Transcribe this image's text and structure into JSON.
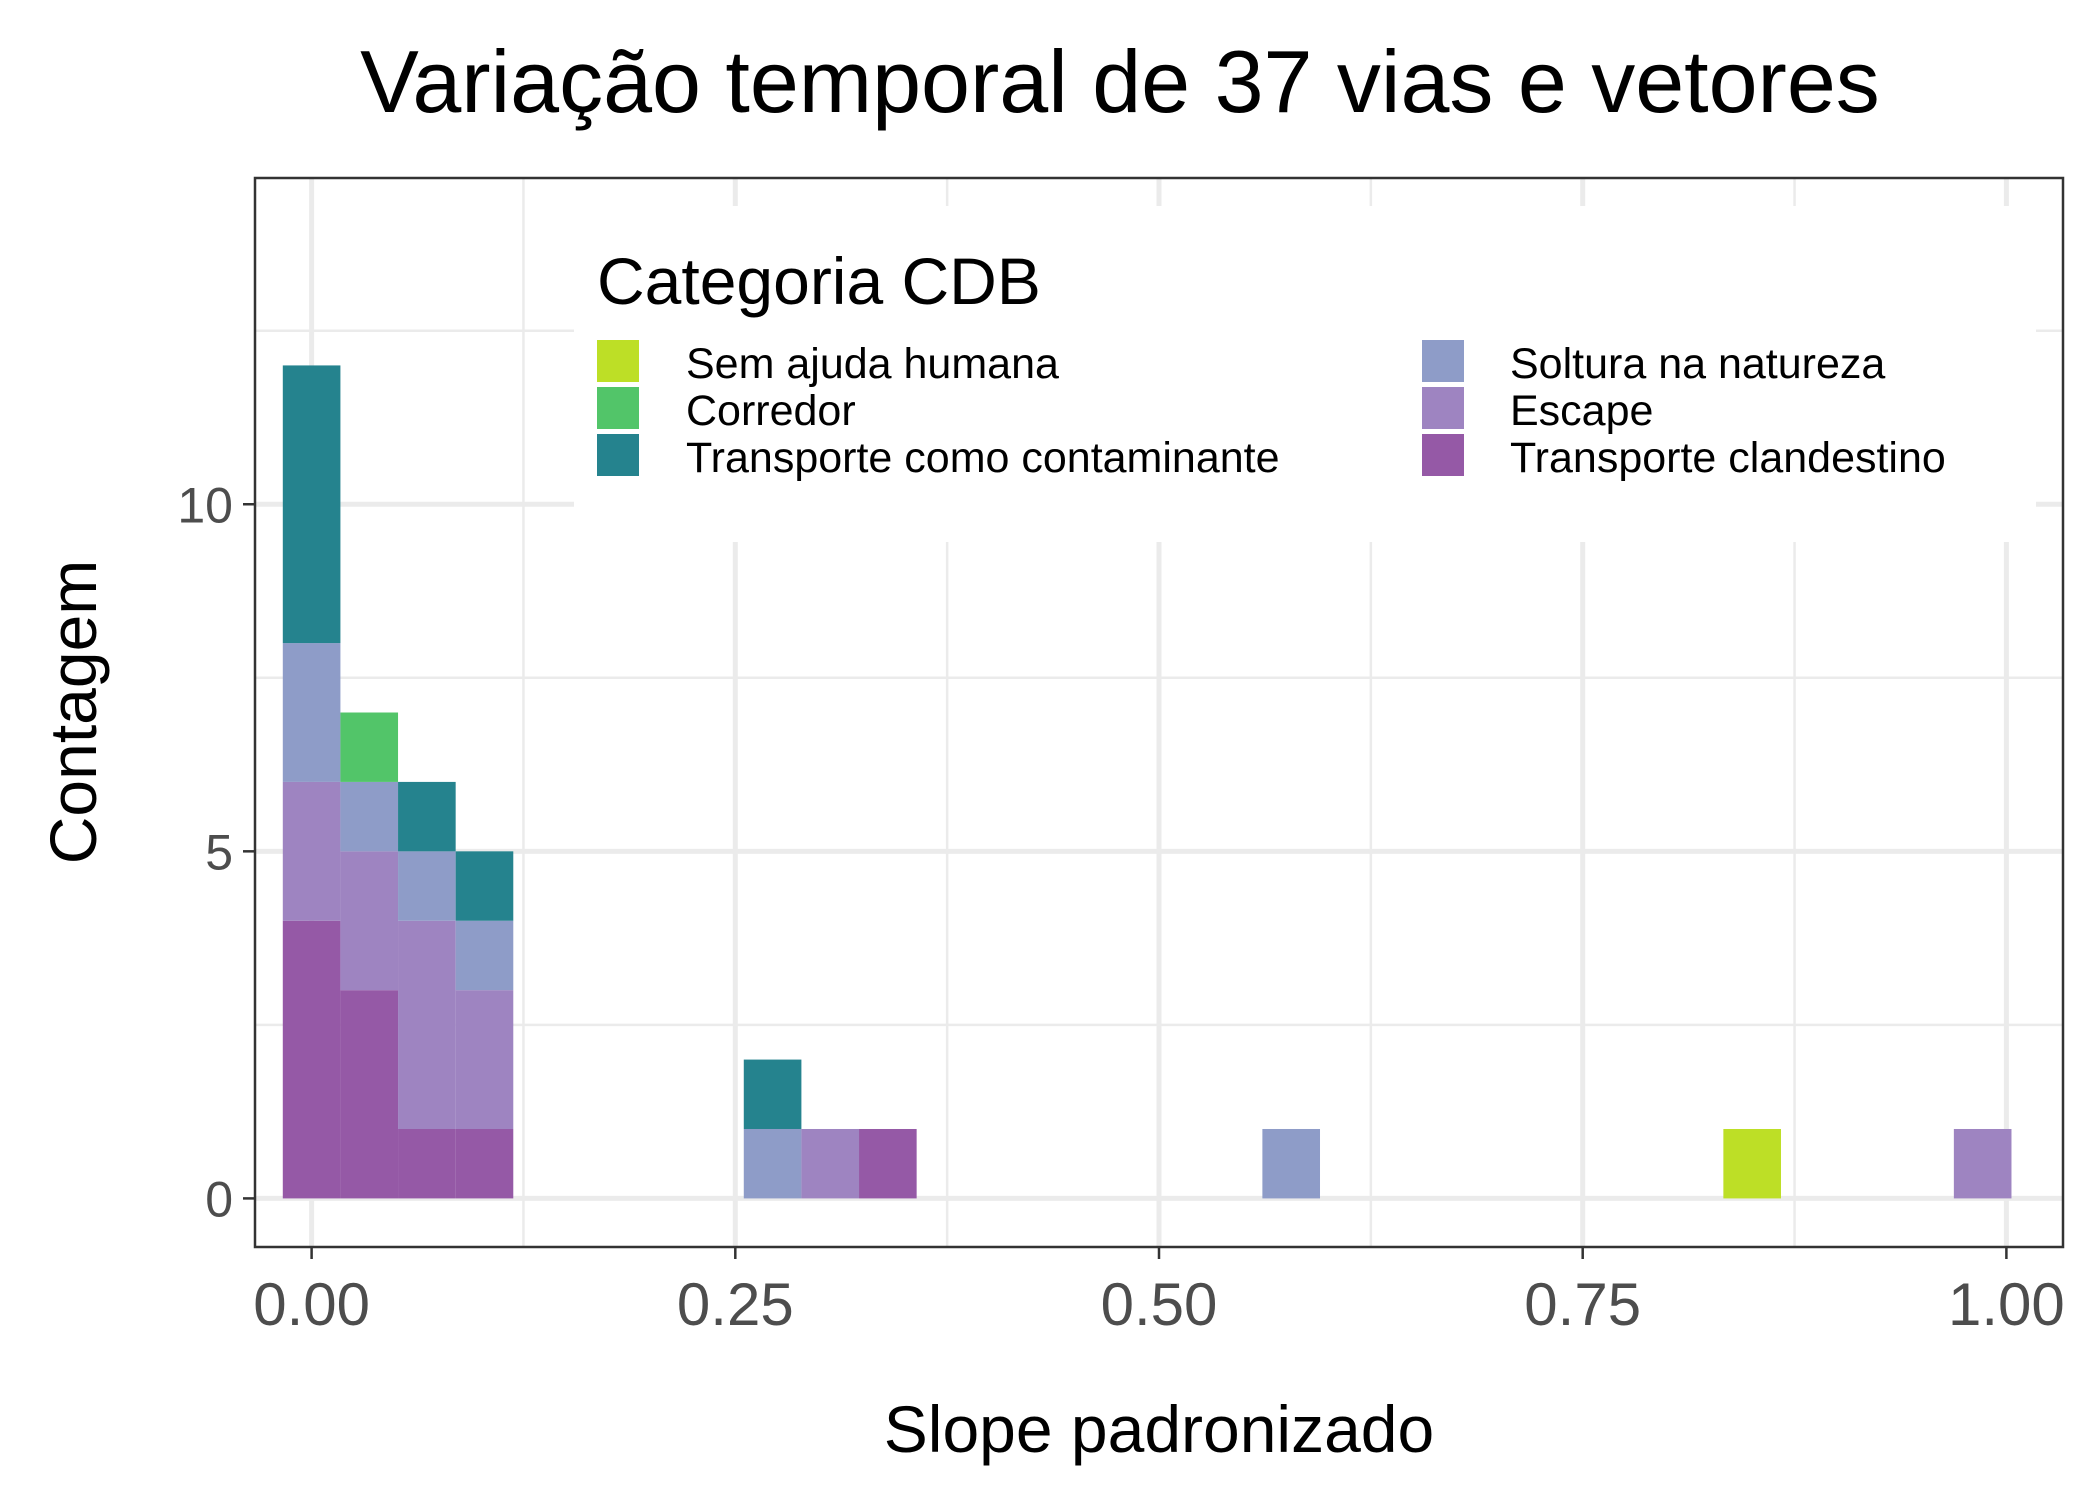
{
  "chart_data": {
    "type": "bar",
    "title": "Variação temporal de 37 vias e vetores",
    "xlabel": "Slope padronizado",
    "ylabel": "Contagem",
    "xlim": [
      -0.0334,
      1.0334
    ],
    "ylim": [
      -0.7,
      14.7
    ],
    "x_ticks": [
      0.0,
      0.25,
      0.5,
      0.75,
      1.0
    ],
    "x_tick_labels": [
      "0.00",
      "0.25",
      "0.50",
      "0.75",
      "1.00"
    ],
    "y_ticks": [
      0,
      5,
      10
    ],
    "y_tick_labels": [
      "0",
      "5",
      "10"
    ],
    "grid": true,
    "bin_width": 0.034,
    "stacking_order_bottom_to_top": [
      "Transporte clandestino",
      "Escape",
      "Soltura na natureza",
      "Corredor",
      "Transporte como contaminante",
      "Sem ajuda humana"
    ],
    "legend": {
      "title": "Categoria CDB",
      "placement": "top-right (inside plot)",
      "entries": [
        "Sem ajuda humana",
        "Corredor",
        "Transporte como contaminante",
        "Soltura na natureza",
        "Escape",
        "Transporte clandestino"
      ]
    },
    "bins": [
      0.0,
      0.034,
      0.068,
      0.102,
      0.272,
      0.306,
      0.34,
      0.578,
      0.85,
      0.986
    ],
    "series": [
      {
        "name": "Sem ajuda humana",
        "color": "#bddf26",
        "values": [
          0,
          0,
          0,
          0,
          0,
          0,
          0,
          0,
          1,
          0
        ]
      },
      {
        "name": "Corredor",
        "color": "#52c569",
        "values": [
          0,
          1,
          0,
          0,
          0,
          0,
          0,
          0,
          0,
          0
        ]
      },
      {
        "name": "Transporte como contaminante",
        "color": "#25838e",
        "values": [
          4,
          0,
          1,
          1,
          1,
          0,
          0,
          0,
          0,
          0
        ]
      },
      {
        "name": "Soltura na natureza",
        "color": "#8e9cc8",
        "values": [
          2,
          1,
          1,
          1,
          1,
          0,
          0,
          1,
          0,
          0
        ]
      },
      {
        "name": "Escape",
        "color": "#9e84c1",
        "values": [
          2,
          2,
          3,
          2,
          0,
          1,
          0,
          0,
          0,
          1
        ]
      },
      {
        "name": "Transporte clandestino",
        "color": "#9559a6",
        "values": [
          4,
          3,
          1,
          1,
          0,
          0,
          1,
          0,
          0,
          0
        ]
      }
    ]
  }
}
